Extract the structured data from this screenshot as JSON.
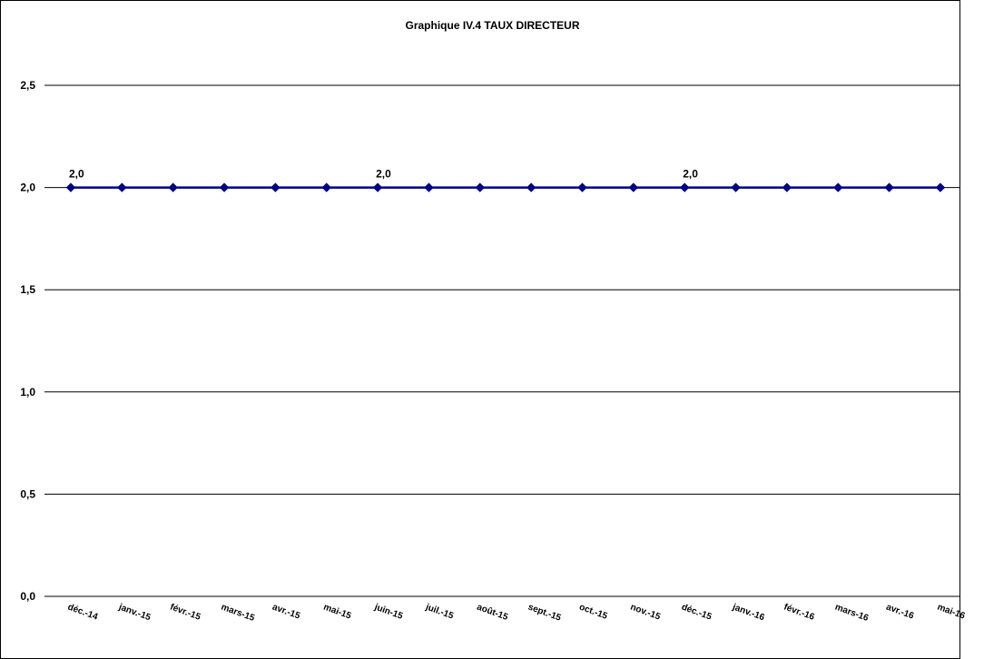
{
  "chart_data": {
    "type": "line",
    "title": "Graphique IV.4 TAUX DIRECTEUR",
    "xlabel": "",
    "ylabel": "",
    "categories": [
      "déc.-14",
      "janv.-15",
      "févr.-15",
      "mars-15",
      "avr.-15",
      "mai-15",
      "juin-15",
      "juil.-15",
      "août-15",
      "sept.-15",
      "oct.-15",
      "nov.-15",
      "déc.-15",
      "janv.-16",
      "févr.-16",
      "mars-16",
      "avr.-16",
      "mai-16"
    ],
    "series": [
      {
        "values": [
          2.0,
          2.0,
          2.0,
          2.0,
          2.0,
          2.0,
          2.0,
          2.0,
          2.0,
          2.0,
          2.0,
          2.0,
          2.0,
          2.0,
          2.0,
          2.0,
          2.0,
          2.0
        ]
      }
    ],
    "data_labels": [
      {
        "index": 0,
        "text": "2,0"
      },
      {
        "index": 6,
        "text": "2,0"
      },
      {
        "index": 12,
        "text": "2,0"
      }
    ],
    "ylim": [
      0,
      2.5
    ],
    "y_ticks": [
      "0,0",
      "0,5",
      "1,0",
      "1,5",
      "2,0",
      "2,5"
    ],
    "grid": true,
    "legend": "none",
    "colors": {
      "line": "#000080",
      "marker": "#000080",
      "grid": "#000000"
    }
  }
}
